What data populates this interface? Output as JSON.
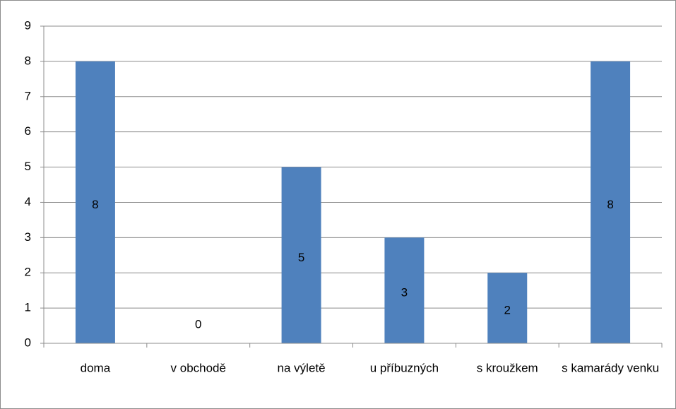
{
  "chart_data": {
    "type": "bar",
    "categories": [
      "doma",
      "v obchodě",
      "na výletě",
      "u příbuzných",
      "s kroužkem",
      "s kamarády venku"
    ],
    "values": [
      8,
      0,
      5,
      3,
      2,
      8
    ],
    "color": "#4f81bd",
    "ylim": [
      0,
      9
    ],
    "yticks": [
      0,
      1,
      2,
      3,
      4,
      5,
      6,
      7,
      8,
      9
    ],
    "grid": true
  }
}
